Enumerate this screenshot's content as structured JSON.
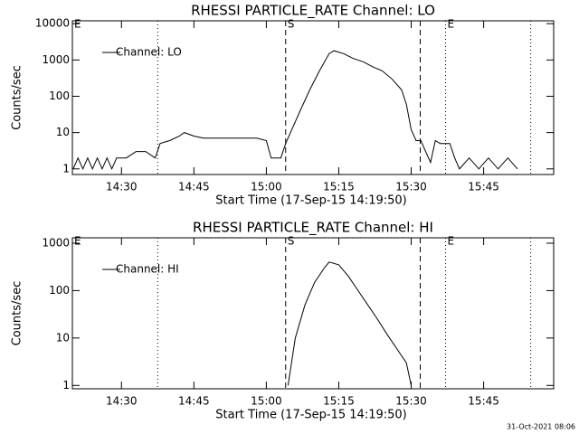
{
  "chart_data": [
    {
      "type": "line",
      "title": "RHESSI PARTICLE_RATE Channel: LO",
      "xlabel": "Start Time (17-Sep-15 14:19:50)",
      "ylabel": "Counts/sec",
      "x": [
        "14:20",
        "14:21",
        "14:22",
        "14:23",
        "14:24",
        "14:25",
        "14:26",
        "14:27",
        "14:28",
        "14:29",
        "14:31",
        "14:33",
        "14:35",
        "14:37",
        "14:38",
        "14:40",
        "14:42",
        "14:43",
        "14:45",
        "14:47",
        "14:50",
        "14:53",
        "14:55",
        "14:58",
        "15:00",
        "15:01",
        "15:03",
        "15:04",
        "15:05",
        "15:07",
        "15:09",
        "15:11",
        "15:13",
        "15:14",
        "15:16",
        "15:18",
        "15:20",
        "15:22",
        "15:24",
        "15:26",
        "15:28",
        "15:29",
        "15:30",
        "15:31",
        "15:32",
        "15:33",
        "15:34",
        "15:35",
        "15:36",
        "15:38",
        "15:39",
        "15:40",
        "15:42",
        "15:44",
        "15:46",
        "15:48",
        "15:50",
        "15:52"
      ],
      "series": [
        {
          "name": "Channel: LO",
          "color": "#000000",
          "values": [
            1,
            2,
            1,
            2,
            1,
            2,
            1,
            2,
            1,
            2,
            2,
            3,
            3,
            2,
            5,
            6,
            8,
            10,
            8,
            7,
            7,
            7,
            7,
            7,
            6,
            2,
            2,
            5,
            10,
            40,
            150,
            500,
            1500,
            1800,
            1500,
            1100,
            900,
            650,
            500,
            300,
            150,
            60,
            12,
            6,
            6,
            3,
            1.5,
            6,
            5,
            5,
            2,
            1,
            2,
            1,
            2,
            1,
            2,
            1
          ]
        }
      ],
      "xlim": [
        "14:19:50",
        "15:59:30"
      ],
      "xticks": [
        "14:30",
        "14:45",
        "15:00",
        "15:15",
        "15:30",
        "15:45"
      ],
      "ylim": [
        0.7,
        12000
      ],
      "yticks": [
        1,
        10,
        100,
        1000,
        10000
      ],
      "log_y": true,
      "legend": "upper left",
      "vlines": [
        {
          "x": "14:19:50",
          "label": "E"
        },
        {
          "x": "14:37:30",
          "style": "dotted"
        },
        {
          "x": "15:04:00",
          "style": "dashed",
          "label": "S"
        },
        {
          "x": "15:31:52",
          "style": "dashed"
        },
        {
          "x": "15:37:07",
          "style": "dotted",
          "label": "E"
        },
        {
          "x": "15:54:45",
          "style": "dotted"
        }
      ]
    },
    {
      "type": "line",
      "title": "RHESSI PARTICLE_RATE Channel: HI",
      "xlabel": "Start Time (17-Sep-15 14:19:50)",
      "ylabel": "Counts/sec",
      "x": [
        "15:04:30",
        "15:06",
        "15:08",
        "15:10",
        "15:12",
        "15:13",
        "15:15",
        "15:17",
        "15:19",
        "15:21",
        "15:23",
        "15:25",
        "15:27",
        "15:29",
        "15:30"
      ],
      "series": [
        {
          "name": "Channel: HI",
          "color": "#000000",
          "values": [
            1,
            10,
            50,
            150,
            300,
            400,
            350,
            200,
            100,
            50,
            25,
            12,
            6,
            3,
            1
          ]
        }
      ],
      "xlim": [
        "14:19:50",
        "15:59:30"
      ],
      "xticks": [
        "14:30",
        "14:45",
        "15:00",
        "15:15",
        "15:30",
        "15:45"
      ],
      "ylim": [
        0.85,
        1300
      ],
      "yticks": [
        1,
        10,
        100,
        1000
      ],
      "log_y": true,
      "legend": "upper left",
      "vlines": [
        {
          "x": "14:19:50",
          "label": "E"
        },
        {
          "x": "14:37:30",
          "style": "dotted"
        },
        {
          "x": "15:04:00",
          "style": "dashed",
          "label": "S"
        },
        {
          "x": "15:31:52",
          "style": "dashed"
        },
        {
          "x": "15:37:07",
          "style": "dotted",
          "label": "E"
        },
        {
          "x": "15:54:45",
          "style": "dotted"
        }
      ]
    }
  ],
  "footer": "31-Oct-2021 08:06"
}
